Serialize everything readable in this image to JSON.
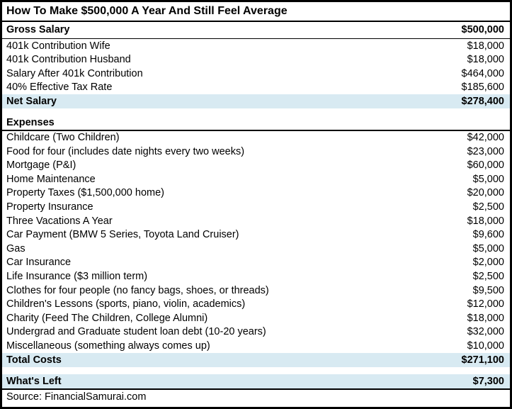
{
  "title": "How To Make $500,000 A Year And Still Feel Average",
  "source_line": "Source: FinancialSamurai.com",
  "colors": {
    "highlight_row_background": "#d8eaf2",
    "border": "#000000",
    "text": "#000000",
    "background": "#ffffff"
  },
  "rows": [
    {
      "label": "Gross Salary",
      "value": "$500,000",
      "bold": true,
      "tall": true
    },
    {
      "type": "divider"
    },
    {
      "label": "401k Contribution Wife",
      "value": "$18,000"
    },
    {
      "label": "401k Contribution Husband",
      "value": "$18,000"
    },
    {
      "label": "Salary After 401k Contribution",
      "value": "$464,000"
    },
    {
      "label": "40% Effective Tax Rate",
      "value": "$185,600"
    },
    {
      "label": "Net Salary",
      "value": "$278,400",
      "bold": true,
      "highlight": true
    },
    {
      "type": "spacer"
    },
    {
      "label": "Expenses",
      "value": "",
      "bold": true
    },
    {
      "type": "divider"
    },
    {
      "label": "Childcare (Two Children)",
      "value": "$42,000"
    },
    {
      "label": "Food for four (includes date nights every two weeks)",
      "value": "$23,000"
    },
    {
      "label": "Mortgage (P&I)",
      "value": "$60,000"
    },
    {
      "label": "Home Maintenance",
      "value": "$5,000"
    },
    {
      "label": "Property Taxes ($1,500,000 home)",
      "value": "$20,000"
    },
    {
      "label": "Property Insurance",
      "value": "$2,500"
    },
    {
      "label": "Three Vacations A Year",
      "value": "$18,000"
    },
    {
      "label": "Car Payment (BMW 5 Series, Toyota Land Cruiser)",
      "value": "$9,600"
    },
    {
      "label": "Gas",
      "value": "$5,000"
    },
    {
      "label": "Car Insurance",
      "value": "$2,000"
    },
    {
      "label": "Life Insurance ($3 million term)",
      "value": "$2,500"
    },
    {
      "label": "Clothes for four people (no fancy bags, shoes, or threads)",
      "value": "$9,500"
    },
    {
      "label": "Children's Lessons (sports, piano, violin, academics)",
      "value": "$12,000"
    },
    {
      "label": "Charity (Feed The Children, College Alumni)",
      "value": "$18,000"
    },
    {
      "label": "Undergrad and Graduate student loan debt (10-20 years)",
      "value": "$32,000"
    },
    {
      "label": "Miscellaneous (something always comes up)",
      "value": "$10,000"
    },
    {
      "label": "Total Costs",
      "value": "$271,100",
      "bold": true,
      "highlight": true
    },
    {
      "type": "spacer"
    },
    {
      "label": "What's Left",
      "value": "$7,300",
      "bold": true,
      "highlight": true
    },
    {
      "type": "divider",
      "thick": true
    },
    {
      "label": "Source: FinancialSamurai.com",
      "value": "",
      "source": true
    }
  ],
  "chart_data": {
    "type": "table",
    "title": "How To Make $500,000 A Year And Still Feel Average",
    "columns": [
      "Item",
      "Amount ($)"
    ],
    "income_section": [
      {
        "item": "Gross Salary",
        "amount": 500000
      },
      {
        "item": "401k Contribution Wife",
        "amount": 18000
      },
      {
        "item": "401k Contribution Husband",
        "amount": 18000
      },
      {
        "item": "Salary After 401k Contribution",
        "amount": 464000
      },
      {
        "item": "40% Effective Tax Rate",
        "amount": 185600
      },
      {
        "item": "Net Salary",
        "amount": 278400
      }
    ],
    "expenses_section": [
      {
        "item": "Childcare (Two Children)",
        "amount": 42000
      },
      {
        "item": "Food for four (includes date nights every two weeks)",
        "amount": 23000
      },
      {
        "item": "Mortgage (P&I)",
        "amount": 60000
      },
      {
        "item": "Home Maintenance",
        "amount": 5000
      },
      {
        "item": "Property Taxes ($1,500,000 home)",
        "amount": 20000
      },
      {
        "item": "Property Insurance",
        "amount": 2500
      },
      {
        "item": "Three Vacations A Year",
        "amount": 18000
      },
      {
        "item": "Car Payment (BMW 5 Series, Toyota Land Cruiser)",
        "amount": 9600
      },
      {
        "item": "Gas",
        "amount": 5000
      },
      {
        "item": "Car Insurance",
        "amount": 2000
      },
      {
        "item": "Life Insurance ($3 million term)",
        "amount": 2500
      },
      {
        "item": "Clothes for four people (no fancy bags, shoes, or threads)",
        "amount": 9500
      },
      {
        "item": "Children's Lessons (sports, piano, violin, academics)",
        "amount": 12000
      },
      {
        "item": "Charity (Feed The Children, College Alumni)",
        "amount": 18000
      },
      {
        "item": "Undergrad and Graduate student loan debt (10-20 years)",
        "amount": 32000
      },
      {
        "item": "Miscellaneous (something always comes up)",
        "amount": 10000
      }
    ],
    "totals": [
      {
        "item": "Total Costs",
        "amount": 271100
      },
      {
        "item": "What's Left",
        "amount": 7300
      }
    ],
    "source": "Source: FinancialSamurai.com",
    "layout": {
      "highlighted_rows": [
        "Net Salary",
        "Total Costs",
        "What's Left"
      ],
      "gridlines": false
    }
  }
}
